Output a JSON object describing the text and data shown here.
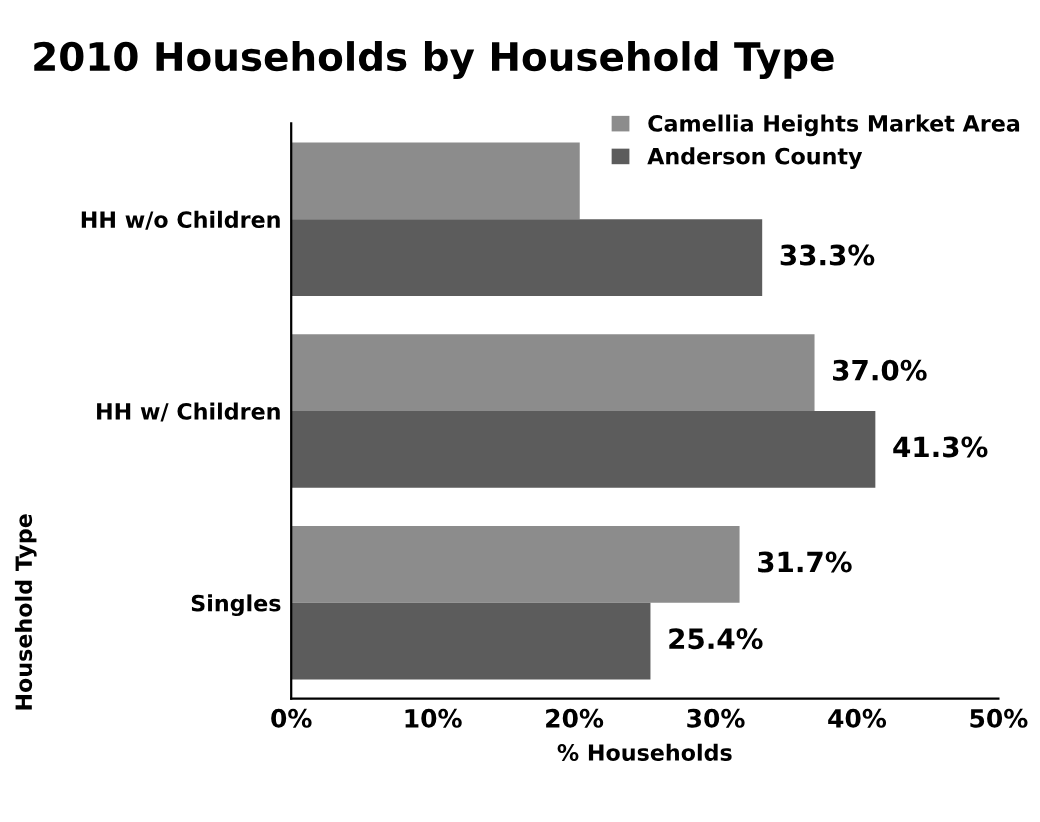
{
  "chart_data": {
    "type": "bar",
    "orientation": "horizontal",
    "title": "2010 Households by Household Type",
    "xlabel": "% Households",
    "ylabel": "Household Type",
    "categories": [
      "HH w/o Children",
      "HH w/ Children",
      "Singles"
    ],
    "series": [
      {
        "name": "Camellia Heights Market Area",
        "color": "#8c8c8c",
        "values": [
          20.4,
          37.0,
          31.7
        ],
        "value_labels": [
          null,
          "37.0%",
          "31.7%"
        ]
      },
      {
        "name": "Anderson County",
        "color": "#5c5c5c",
        "values": [
          33.3,
          41.3,
          25.4
        ],
        "value_labels": [
          "33.3%",
          "41.3%",
          "25.4%"
        ]
      }
    ],
    "xlim": [
      0,
      50
    ],
    "xticks": [
      {
        "value": 0,
        "label": "0%"
      },
      {
        "value": 10,
        "label": "10%"
      },
      {
        "value": 20,
        "label": "20%"
      },
      {
        "value": 30,
        "label": "30%"
      },
      {
        "value": 40,
        "label": "40%"
      },
      {
        "value": 50,
        "label": "50%"
      }
    ],
    "grid": false,
    "legend": "top right"
  }
}
